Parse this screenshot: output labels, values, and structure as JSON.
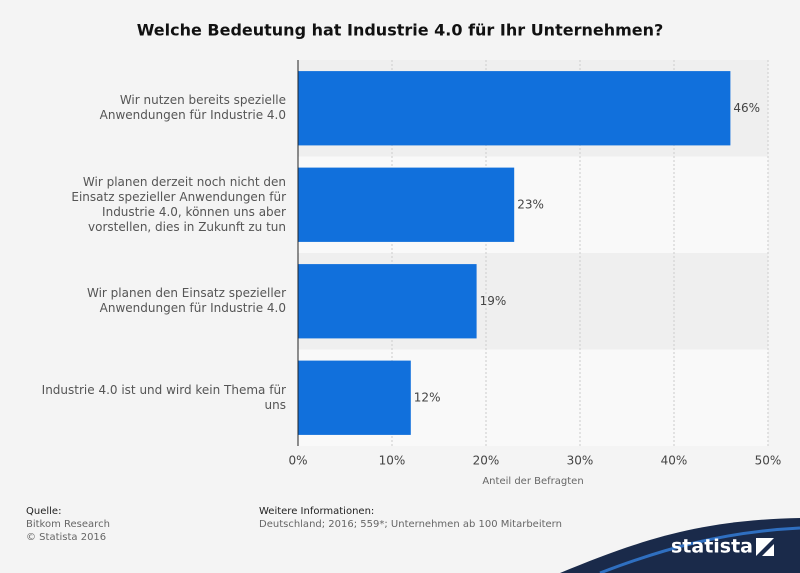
{
  "chart_data": {
    "type": "bar",
    "orientation": "horizontal",
    "title": "Welche Bedeutung hat Industrie 4.0 für Ihr Unternehmen?",
    "categories": [
      "Wir nutzen bereits spezielle Anwendungen für Industrie 4.0",
      "Wir planen derzeit noch nicht den Einsatz spezieller Anwendungen für Industrie 4.0, können uns aber vorstellen, dies in Zukunft zu tun",
      "Wir planen den Einsatz spezieller Anwendungen für Industrie 4.0",
      "Industrie 4.0 ist und wird kein Thema für uns"
    ],
    "values": [
      46,
      23,
      19,
      12
    ],
    "value_labels": [
      "46%",
      "23%",
      "19%",
      "12%"
    ],
    "color": "#1170dc",
    "xlabel": "Anteil der Befragten",
    "xlim": [
      0,
      50
    ],
    "xticks": [
      {
        "value": 0,
        "label": "0%"
      },
      {
        "value": 10,
        "label": "10%"
      },
      {
        "value": 20,
        "label": "20%"
      },
      {
        "value": 30,
        "label": "30%"
      },
      {
        "value": 40,
        "label": "40%"
      },
      {
        "value": 50,
        "label": "50%"
      }
    ],
    "grid": true
  },
  "footer": {
    "source_title": "Quelle:",
    "source": "Bitkom Research",
    "copyright": "© Statista 2016",
    "info_title": "Weitere Informationen:",
    "info": "Deutschland; 2016; 559*; Unternehmen ab 100 Mitarbeitern",
    "logo": "statista"
  }
}
